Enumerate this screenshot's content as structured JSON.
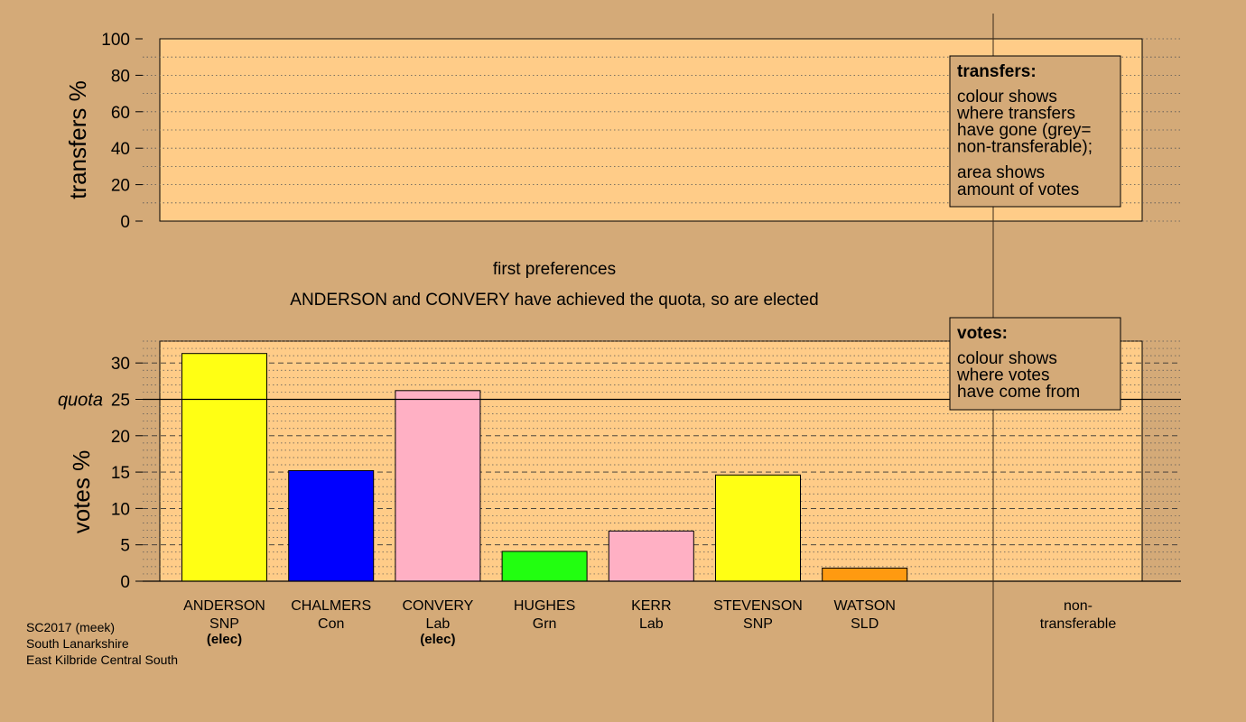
{
  "chart_data": {
    "type": "bar",
    "caption_line1": "first preferences",
    "caption_line2": "ANDERSON and CONVERY have achieved the quota, so are elected",
    "transfers_panel": {
      "ylabel": "transfers %",
      "ylim": [
        0,
        100
      ],
      "yticks": [
        "0",
        "20",
        "40",
        "60",
        "80",
        "100"
      ],
      "legend": {
        "title": "transfers:",
        "lines1": [
          "colour shows",
          "where transfers",
          "have gone (grey=",
          "non-transferable);"
        ],
        "lines2": [
          "area shows",
          "amount of votes"
        ]
      }
    },
    "votes_panel": {
      "ylabel": "votes %",
      "ylim": [
        0,
        33
      ],
      "yticks": [
        "0",
        "5",
        "10",
        "15",
        "20",
        "25",
        "30"
      ],
      "quota": 25,
      "quota_label": "quota",
      "legend": {
        "title": "votes:",
        "lines": [
          "colour shows",
          "where votes",
          "have come from"
        ]
      }
    },
    "candidates": [
      {
        "name": "ANDERSON",
        "party": "SNP",
        "status": "(elec)",
        "value": 31.3,
        "color": "#FFFF14"
      },
      {
        "name": "CHALMERS",
        "party": "Con",
        "status": "",
        "value": 15.2,
        "color": "#0000FF"
      },
      {
        "name": "CONVERY",
        "party": "Lab",
        "status": "(elec)",
        "value": 26.2,
        "color": "#FFB0C4"
      },
      {
        "name": "HUGHES",
        "party": "Grn",
        "status": "",
        "value": 4.1,
        "color": "#22FF10"
      },
      {
        "name": "KERR",
        "party": "Lab",
        "status": "",
        "value": 6.9,
        "color": "#FFB0C4"
      },
      {
        "name": "STEVENSON",
        "party": "SNP",
        "status": "",
        "value": 14.6,
        "color": "#FFFF14"
      },
      {
        "name": "WATSON",
        "party": "SLD",
        "status": "",
        "value": 1.8,
        "color": "#FF9A10"
      }
    ],
    "non_transferable": {
      "line1": "non-",
      "line2": "transferable"
    }
  },
  "footer": [
    "SC2017 (meek)",
    "South Lanarkshire",
    "East Kilbride Central South"
  ],
  "colors": {
    "background": "#D4AA78",
    "panel": "#FFCC88"
  }
}
